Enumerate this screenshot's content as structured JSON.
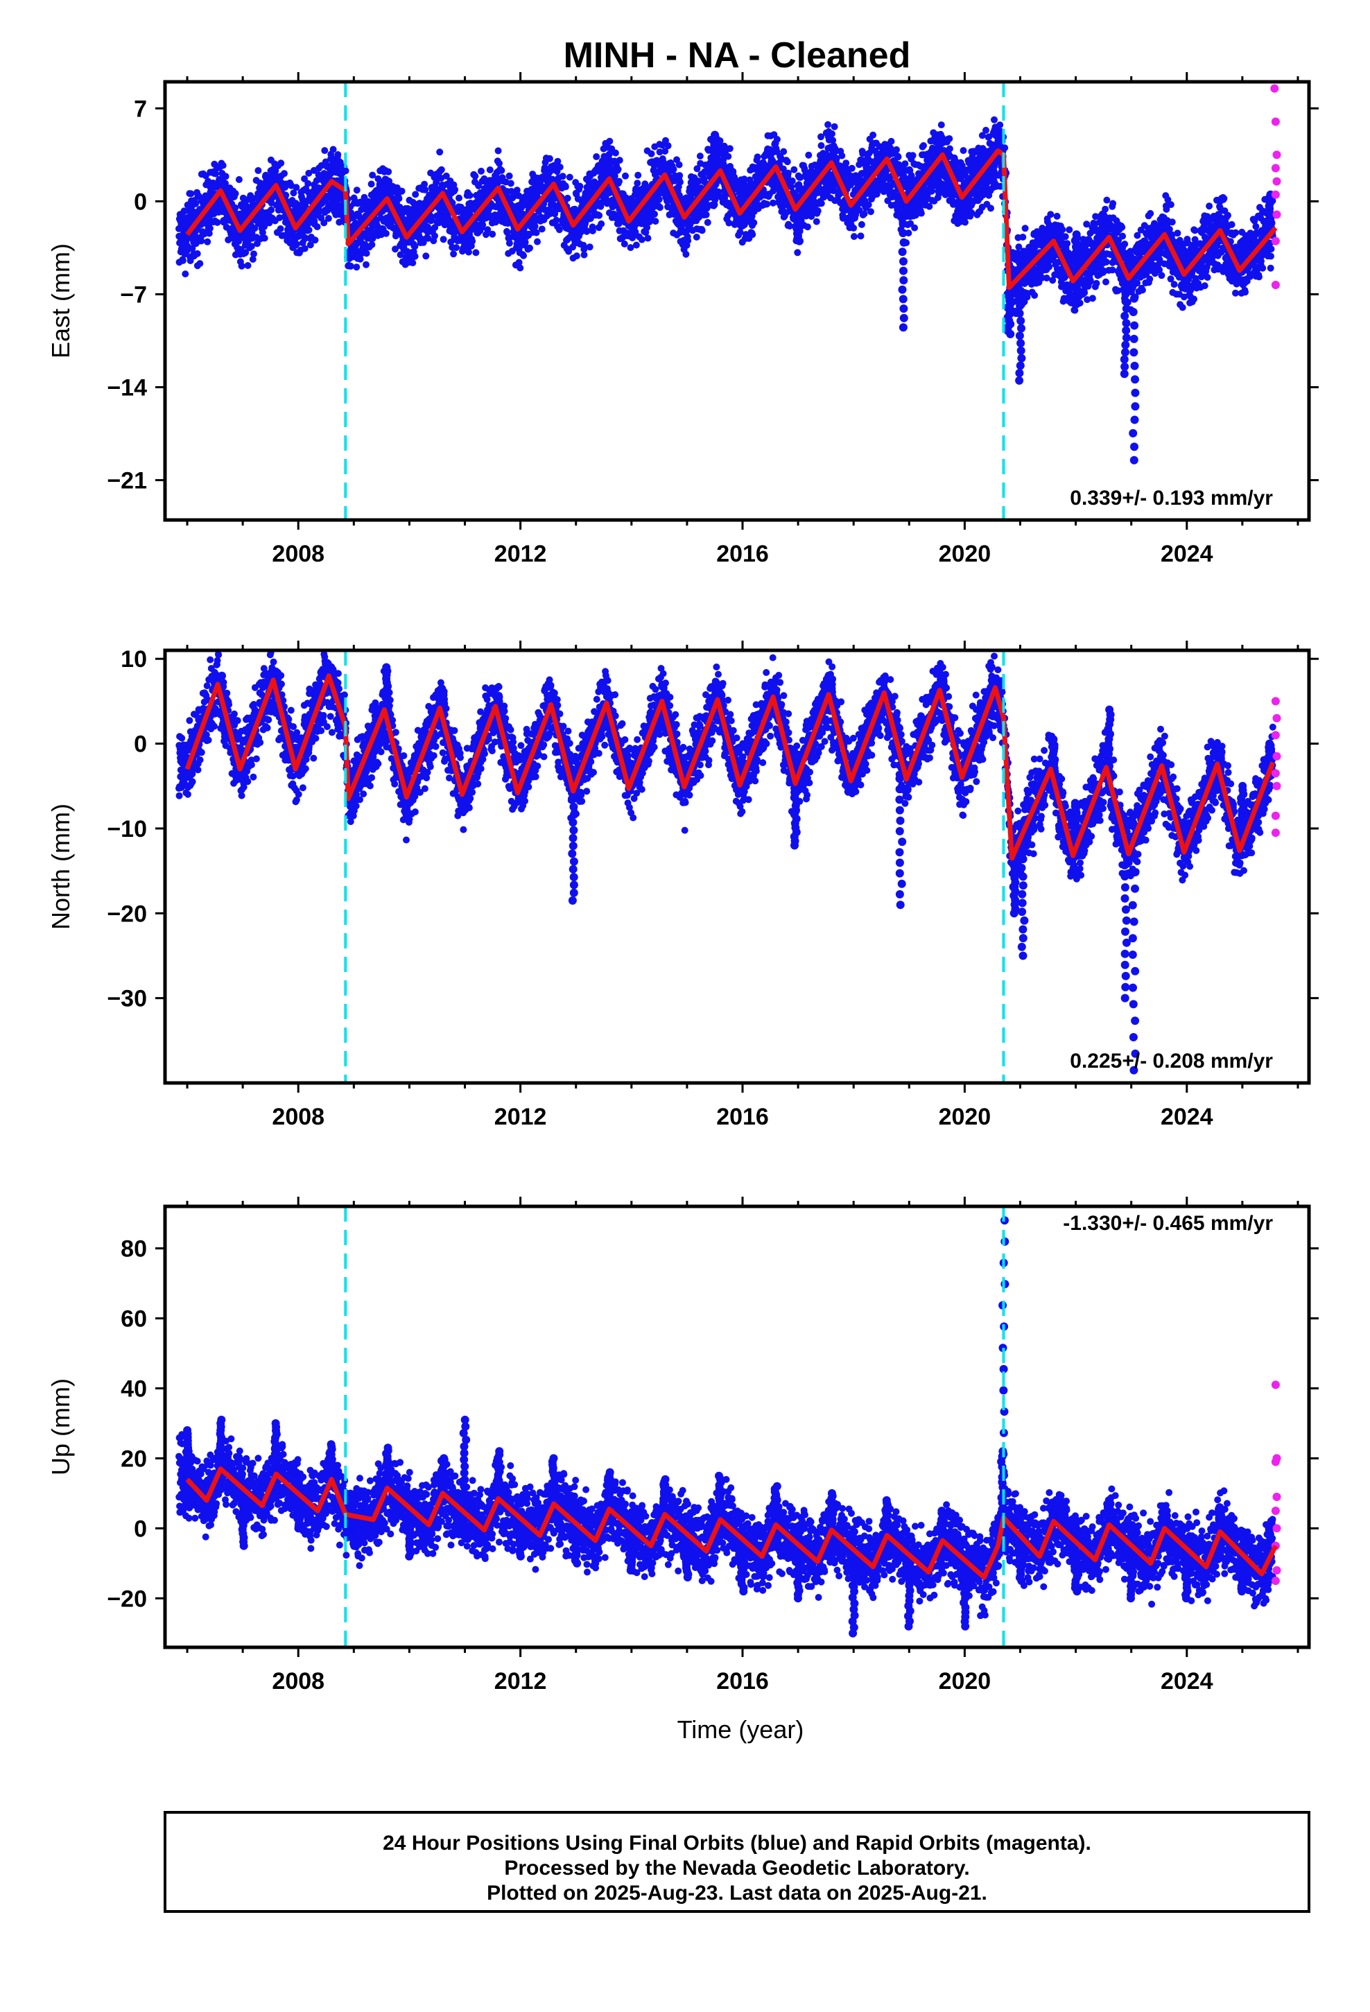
{
  "figure": {
    "title": "MINH  - NA - Cleaned",
    "xlabel": "Time (year)",
    "footer": [
      "24 Hour Positions Using Final Orbits (blue) and Rapid Orbits (magenta).",
      "Processed by the Nevada Geodetic Laboratory.",
      "Plotted on 2025-Aug-23. Last data on 2025-Aug-21."
    ]
  },
  "colors": {
    "final_orbits": "#1010ee",
    "rapid_orbits": "#ee22ee",
    "model": "#ee1111",
    "steps": "#00e5ee",
    "frame": "#000000"
  },
  "chart_data": [
    {
      "type": "scatter",
      "panel": "east",
      "ylabel": "East (mm)",
      "rate_label": "0.339+/- 0.193 mm/yr",
      "xlim": [
        2005.6,
        2026.2
      ],
      "ylim": [
        -24,
        9
      ],
      "yticks": [
        7,
        0,
        -7,
        -14,
        -21
      ],
      "xticks": [
        2008,
        2012,
        2016,
        2020,
        2024
      ],
      "steps": [
        2008.85,
        2020.7
      ],
      "series": [
        {
          "name": "Final Orbits",
          "x": [
            2006.0,
            2006.5,
            2007.0,
            2007.5,
            2008.0,
            2008.5,
            2008.85,
            2009.5,
            2010.0,
            2010.5,
            2011.0,
            2011.5,
            2012.0,
            2012.5,
            2013.0,
            2013.5,
            2014.0,
            2014.5,
            2015.0,
            2015.5,
            2016.0,
            2016.5,
            2017.0,
            2017.5,
            2018.0,
            2018.5,
            2018.9,
            2019.5,
            2020.0,
            2020.5,
            2020.8,
            2021.0,
            2021.5,
            2022.0,
            2022.5,
            2022.9,
            2023.05,
            2023.5,
            2024.0,
            2024.5,
            2025.0,
            2025.5
          ],
          "y": [
            -1.5,
            0.5,
            -1.0,
            1.5,
            -1.0,
            2.0,
            -1.5,
            0.5,
            -1.5,
            0.0,
            -2.0,
            0.5,
            -1.0,
            0.5,
            -3.0,
            2.5,
            -2.0,
            1.5,
            0.0,
            5.0,
            0.5,
            2.0,
            -3.0,
            3.5,
            -1.0,
            2.5,
            -9.5,
            1.5,
            0.5,
            1.5,
            -10.0,
            -13.5,
            -2.0,
            -2.5,
            -1.0,
            -13.0,
            -19.5,
            -2.0,
            -6.0,
            -2.0,
            -3.0,
            0.5
          ]
        },
        {
          "name": "Rapid Orbits",
          "x": [
            2025.58,
            2025.6,
            2025.62,
            2025.6,
            2025.62,
            2025.6,
            2025.62,
            2025.6,
            2025.6
          ],
          "y": [
            8.5,
            6.0,
            3.5,
            2.5,
            1.5,
            0.5,
            -1.0,
            -3.0,
            -6.3
          ]
        },
        {
          "name": "Model",
          "x": [
            2006.0,
            2006.6,
            2006.95,
            2007.6,
            2007.95,
            2008.6,
            2008.85,
            2008.9,
            2009.6,
            2009.95,
            2010.6,
            2010.95,
            2011.6,
            2011.95,
            2012.6,
            2012.95,
            2013.6,
            2013.95,
            2014.6,
            2014.95,
            2015.6,
            2015.95,
            2016.6,
            2016.95,
            2017.6,
            2017.95,
            2018.6,
            2018.95,
            2019.6,
            2019.95,
            2020.6,
            2020.7,
            2020.8,
            2021.6,
            2021.95,
            2022.6,
            2022.95,
            2023.6,
            2023.95,
            2024.6,
            2024.95,
            2025.6
          ],
          "y": [
            -2.5,
            0.8,
            -2.2,
            1.2,
            -2.0,
            1.5,
            0.8,
            -3.2,
            0.2,
            -2.7,
            0.6,
            -2.3,
            1.0,
            -2.1,
            1.3,
            -1.8,
            1.7,
            -1.5,
            2.0,
            -1.2,
            2.3,
            -0.9,
            2.6,
            -0.6,
            2.9,
            -0.3,
            3.2,
            0.0,
            3.5,
            0.3,
            3.8,
            3.5,
            -6.5,
            -3.0,
            -6.0,
            -2.7,
            -5.8,
            -2.5,
            -5.5,
            -2.2,
            -5.2,
            -2.0
          ]
        }
      ]
    },
    {
      "type": "scatter",
      "panel": "north",
      "ylabel": "North (mm)",
      "rate_label": "0.225+/- 0.208 mm/yr",
      "xlim": [
        2005.6,
        2026.2
      ],
      "ylim": [
        -40,
        11
      ],
      "yticks": [
        10,
        0,
        -10,
        -20,
        -30
      ],
      "xticks": [
        2008,
        2012,
        2016,
        2020,
        2024
      ],
      "steps": [
        2008.85,
        2020.7
      ],
      "series": [
        {
          "name": "Final Orbits",
          "x": [
            2006.0,
            2006.6,
            2007.0,
            2007.6,
            2008.0,
            2008.6,
            2009.0,
            2009.6,
            2010.0,
            2010.6,
            2011.0,
            2011.6,
            2012.0,
            2012.6,
            2012.95,
            2013.6,
            2014.0,
            2014.6,
            2015.0,
            2015.6,
            2016.0,
            2016.6,
            2016.95,
            2017.6,
            2018.0,
            2018.6,
            2018.85,
            2019.6,
            2020.0,
            2020.6,
            2020.9,
            2021.05,
            2021.6,
            2022.0,
            2022.6,
            2022.9,
            2023.05,
            2023.6,
            2024.0,
            2024.6,
            2025.0,
            2025.5
          ],
          "y": [
            -2.0,
            8.0,
            -3.5,
            8.5,
            -3.0,
            9.0,
            -4.0,
            9.0,
            -5.0,
            6.5,
            -5.0,
            5.5,
            -5.0,
            4.5,
            -18.5,
            4.0,
            -5.0,
            5.0,
            -4.5,
            6.0,
            -4.5,
            6.0,
            -12.0,
            6.5,
            -5.0,
            6.0,
            -19.0,
            8.0,
            -4.0,
            7.0,
            -20.0,
            -25.0,
            0.5,
            -7.0,
            4.0,
            -30.0,
            -38.5,
            -3.0,
            -12.0,
            -1.0,
            -5.0,
            0.0
          ]
        },
        {
          "name": "Rapid Orbits",
          "x": [
            2025.6,
            2025.62,
            2025.6,
            2025.62,
            2025.6,
            2025.62,
            2025.6,
            2025.6
          ],
          "y": [
            5.0,
            3.0,
            1.0,
            -1.5,
            -3.5,
            -5.0,
            -8.5,
            -10.5
          ]
        },
        {
          "name": "Model",
          "x": [
            2006.0,
            2006.55,
            2006.95,
            2007.55,
            2007.95,
            2008.55,
            2008.85,
            2008.9,
            2009.55,
            2009.95,
            2010.55,
            2010.95,
            2011.55,
            2011.95,
            2012.55,
            2012.95,
            2013.55,
            2013.95,
            2014.55,
            2014.95,
            2015.55,
            2015.95,
            2016.55,
            2016.95,
            2017.55,
            2017.95,
            2018.55,
            2018.95,
            2019.55,
            2019.95,
            2020.55,
            2020.7,
            2020.85,
            2021.55,
            2021.95,
            2022.55,
            2022.95,
            2023.55,
            2023.95,
            2024.55,
            2024.95,
            2025.55
          ],
          "y": [
            -3.0,
            7.0,
            -3.0,
            7.5,
            -3.0,
            8.0,
            2.0,
            -6.5,
            4.0,
            -6.3,
            4.2,
            -6.0,
            4.4,
            -5.8,
            4.6,
            -5.6,
            4.8,
            -5.3,
            5.0,
            -5.1,
            5.2,
            -4.9,
            5.5,
            -4.7,
            5.8,
            -4.4,
            6.0,
            -4.2,
            6.3,
            -4.0,
            6.6,
            3.0,
            -13.5,
            -3.0,
            -13.2,
            -2.8,
            -13.0,
            -2.6,
            -12.8,
            -2.4,
            -12.6,
            -2.2
          ]
        }
      ]
    },
    {
      "type": "scatter",
      "panel": "up",
      "ylabel": "Up (mm)",
      "rate_label": "-1.330+/- 0.465 mm/yr",
      "xlim": [
        2005.6,
        2026.2
      ],
      "ylim": [
        -34,
        92
      ],
      "yticks": [
        80,
        60,
        40,
        20,
        0,
        -20
      ],
      "xticks": [
        2008,
        2012,
        2016,
        2020,
        2024
      ],
      "steps": [
        2008.85,
        2020.7
      ],
      "series": [
        {
          "name": "Final Orbits",
          "x": [
            2006.0,
            2006.6,
            2007.0,
            2007.6,
            2008.0,
            2008.6,
            2009.0,
            2009.6,
            2010.0,
            2010.6,
            2011.0,
            2011.6,
            2012.0,
            2012.6,
            2013.0,
            2013.6,
            2014.0,
            2014.6,
            2015.0,
            2015.6,
            2016.0,
            2016.6,
            2017.0,
            2017.6,
            2018.0,
            2018.6,
            2019.0,
            2019.6,
            2020.0,
            2020.6,
            2020.68,
            2020.7,
            2021.0,
            2021.6,
            2022.0,
            2022.6,
            2023.0,
            2023.6,
            2024.0,
            2024.6,
            2025.0,
            2025.5
          ],
          "y": [
            28.0,
            31.0,
            -5.0,
            30.0,
            0.0,
            24.0,
            -5.0,
            23.0,
            -8.0,
            20.0,
            31.0,
            22.0,
            -8.0,
            20.0,
            -10.0,
            16.0,
            -12.0,
            14.0,
            -14.0,
            15.0,
            -18.0,
            12.0,
            -20.0,
            10.0,
            -30.0,
            8.0,
            -28.0,
            5.0,
            -28.0,
            3.0,
            22.0,
            88.0,
            -15.0,
            6.0,
            -18.0,
            8.0,
            -20.0,
            5.0,
            -20.0,
            6.0,
            -18.0,
            2.0
          ]
        },
        {
          "name": "Rapid Orbits",
          "x": [
            2025.6,
            2025.62,
            2025.6,
            2025.62,
            2025.6,
            2025.62,
            2025.6,
            2025.62,
            2025.6
          ],
          "y": [
            41.0,
            20.0,
            19.0,
            9.0,
            5.0,
            0.0,
            -5.0,
            -12.0,
            -15.0
          ]
        },
        {
          "name": "Model",
          "x": [
            2006.0,
            2006.35,
            2006.6,
            2007.35,
            2007.6,
            2008.35,
            2008.6,
            2008.85,
            2009.35,
            2009.6,
            2010.35,
            2010.6,
            2011.35,
            2011.6,
            2012.35,
            2012.6,
            2013.35,
            2013.6,
            2014.35,
            2014.6,
            2015.35,
            2015.6,
            2016.35,
            2016.6,
            2017.35,
            2017.6,
            2018.35,
            2018.6,
            2019.35,
            2019.6,
            2020.35,
            2020.6,
            2020.7,
            2021.35,
            2021.6,
            2022.35,
            2022.6,
            2023.35,
            2023.6,
            2024.35,
            2024.6,
            2025.35,
            2025.6
          ],
          "y": [
            14.0,
            8.0,
            17.0,
            6.5,
            15.5,
            5.0,
            14.0,
            4.0,
            2.5,
            11.5,
            1.0,
            10.0,
            -0.5,
            8.5,
            -2.0,
            7.0,
            -3.5,
            5.5,
            -5.0,
            4.0,
            -6.5,
            2.5,
            -8.0,
            1.0,
            -9.5,
            -0.5,
            -11.0,
            -2.0,
            -12.5,
            -3.5,
            -14.0,
            -5.0,
            3.0,
            -8.0,
            2.0,
            -9.0,
            1.0,
            -10.0,
            0.0,
            -11.0,
            -1.0,
            -13.0,
            -5.0
          ]
        }
      ]
    }
  ]
}
